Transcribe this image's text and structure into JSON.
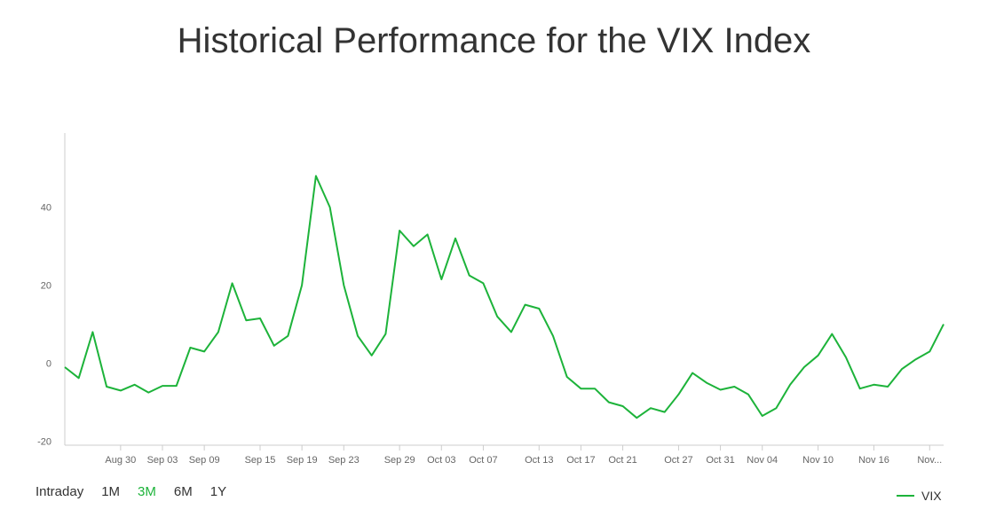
{
  "page_title": "Historical Performance for the VIX Index",
  "ranges": [
    {
      "label": "Intraday",
      "active": false
    },
    {
      "label": "1M",
      "active": false
    },
    {
      "label": "3M",
      "active": true
    },
    {
      "label": "6M",
      "active": false
    },
    {
      "label": "1Y",
      "active": false
    }
  ],
  "colors": {
    "series": "#1db33a",
    "axis": "#cccccc",
    "text": "#333333"
  },
  "chart_data": {
    "type": "line",
    "title": "Historical Performance for the VIX Index",
    "xlabel": "",
    "ylabel": "",
    "ylim": [
      -21,
      59
    ],
    "yticks": [
      -20,
      0,
      20,
      40
    ],
    "grid": false,
    "legend_position": "bottom-right",
    "x_tick_labels": [
      "Aug 30",
      "Sep 03",
      "Sep 09",
      "Sep 15",
      "Sep 19",
      "Sep 23",
      "Sep 29",
      "Oct 03",
      "Oct 07",
      "Oct 13",
      "Oct 17",
      "Oct 21",
      "Oct 27",
      "Oct 31",
      "Nov 04",
      "Nov 10",
      "Nov 16",
      "Nov..."
    ],
    "x_tick_index": [
      4,
      7,
      10,
      14,
      17,
      20,
      24,
      27,
      30,
      34,
      37,
      40,
      44,
      47,
      50,
      54,
      58,
      62
    ],
    "series": [
      {
        "name": "VIX",
        "values": [
          -1,
          -3.8,
          8,
          -6,
          -7,
          -5.5,
          -7.5,
          -5.8,
          -5.8,
          4,
          3,
          8,
          20.5,
          11,
          11.5,
          4.5,
          7,
          20,
          48,
          40,
          20,
          7,
          2,
          7.5,
          34,
          30,
          33,
          21.5,
          32,
          22.5,
          20.5,
          12,
          8,
          15,
          14,
          7,
          -3.5,
          -6.5,
          -6.5,
          -10,
          -11,
          -14,
          -11.5,
          -12.5,
          -8,
          -2.5,
          -5,
          -6.8,
          -6,
          -8,
          -13.5,
          -11.5,
          -5.5,
          -1,
          2,
          7.5,
          1.5,
          -6.5,
          -5.5,
          -6,
          -1.5,
          1,
          3,
          10
        ]
      }
    ]
  }
}
